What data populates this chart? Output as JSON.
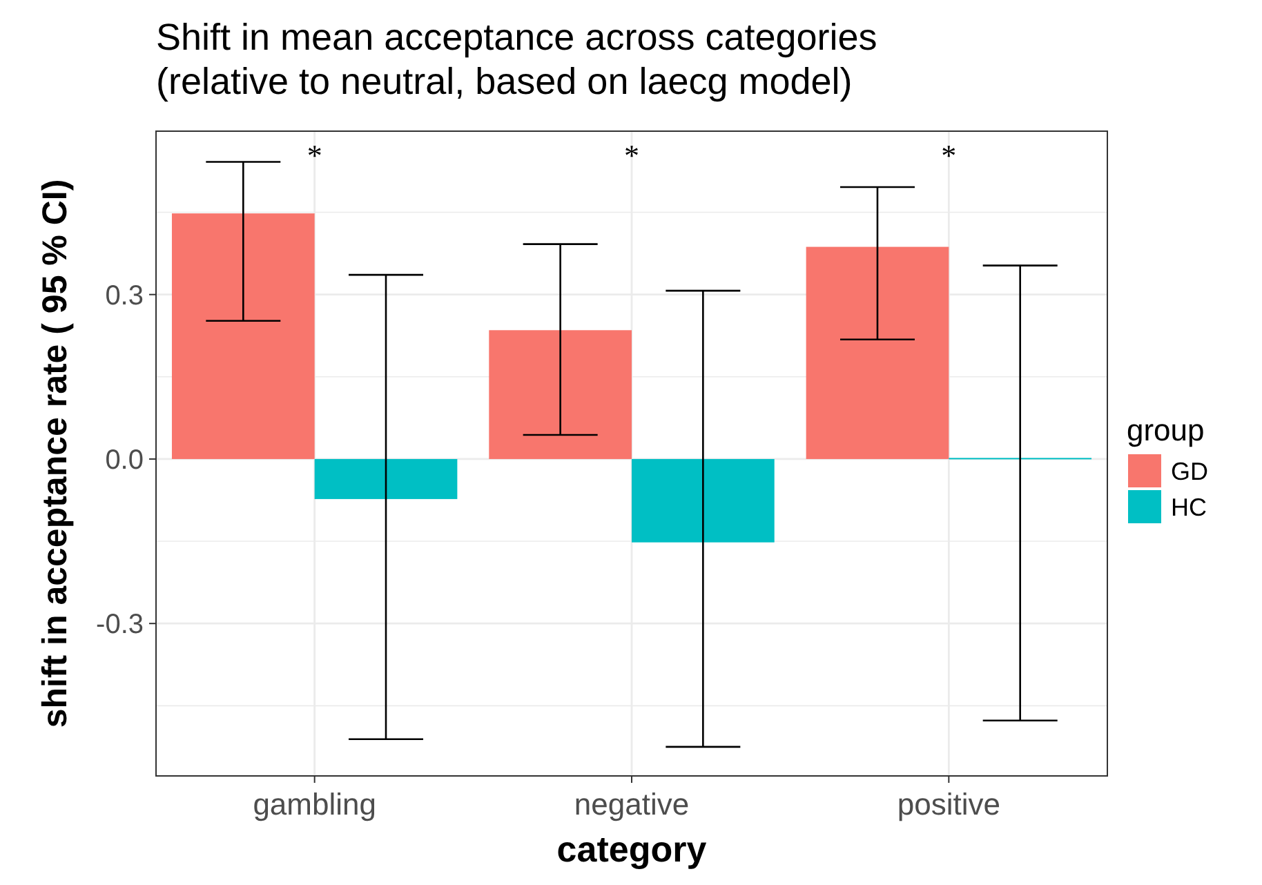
{
  "chart_data": {
    "type": "bar",
    "title": "Shift in mean acceptance across categories\n(relative to neutral, based on laecg model)",
    "xlabel": "category",
    "ylabel": "shift in acceptance rate ( 95 % CI)",
    "legend_title": "group",
    "categories": [
      "gambling",
      "negative",
      "positive"
    ],
    "series": [
      {
        "name": "GD",
        "color": "#f8766d",
        "values": [
          0.448,
          0.235,
          0.387
        ],
        "errors": [
          [
            0.252,
            0.542
          ],
          [
            0.044,
            0.392
          ],
          [
            0.218,
            0.496
          ]
        ]
      },
      {
        "name": "HC",
        "color": "#00bfc4",
        "values": [
          -0.073,
          -0.152,
          0.002
        ],
        "errors": [
          [
            -0.511,
            0.336
          ],
          [
            -0.525,
            0.307
          ],
          [
            -0.477,
            0.353
          ]
        ]
      }
    ],
    "ylim": [
      -0.578,
      0.598
    ],
    "yticks": [
      {
        "value": -0.45,
        "label": null
      },
      -0.3,
      {
        "value": -0.15,
        "label": null
      },
      {
        "value": 0,
        "label": "0.0"
      },
      {
        "value": 0.15,
        "label": null
      },
      0.3,
      {
        "value": 0.45,
        "label": null
      }
    ],
    "annotations": [
      "*",
      "*",
      "*"
    ],
    "grid": true,
    "legend": "right"
  }
}
